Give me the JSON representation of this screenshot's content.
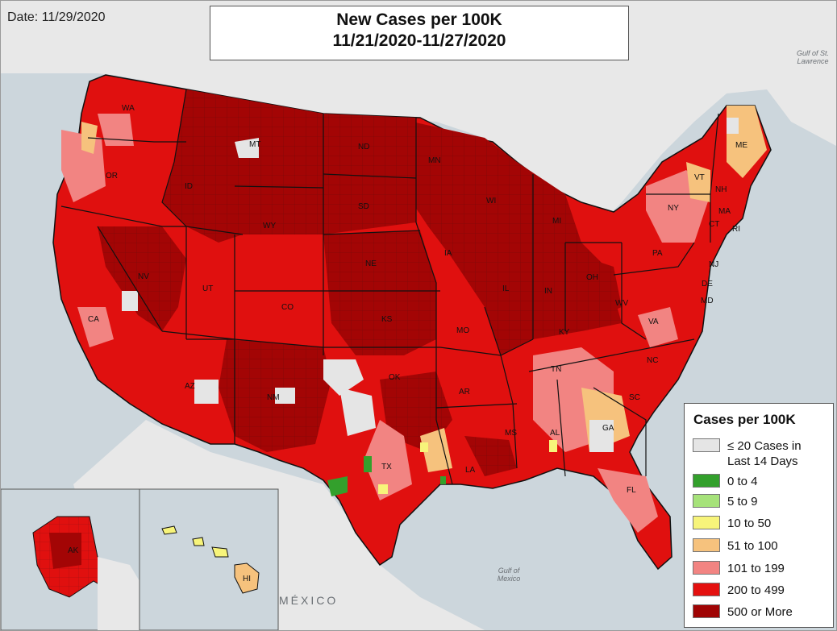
{
  "date_label": "Date: 11/29/2020",
  "title": {
    "line1": "New Cases per 100K",
    "line2": "11/21/2020-11/27/2020"
  },
  "legend": {
    "title": "Cases per 100K",
    "items": [
      {
        "label": "≤ 20 Cases in\nLast 14 Days",
        "color": "#e5e5e5"
      },
      {
        "label": "0 to 4",
        "color": "#33a02c"
      },
      {
        "label": "5 to 9",
        "color": "#a6e27a"
      },
      {
        "label": "10 to 50",
        "color": "#f7f47a"
      },
      {
        "label": "51 to 100",
        "color": "#f6c27d"
      },
      {
        "label": "101 to 199",
        "color": "#f28482"
      },
      {
        "label": "200 to 499",
        "color": "#e4100f"
      },
      {
        "label": "500 or More",
        "color": "#a00404"
      }
    ]
  },
  "geo_labels": {
    "gulf_of_st_lawrence": "Gulf of St. Lawrence",
    "gulf_of_mexico": "Gulf of Mexico",
    "mexico": "MÉXICO"
  },
  "state_labels": [
    {
      "abbr": "WA",
      "color_class": "dark"
    },
    {
      "abbr": "OR"
    },
    {
      "abbr": "CA"
    },
    {
      "abbr": "NV"
    },
    {
      "abbr": "ID"
    },
    {
      "abbr": "MT"
    },
    {
      "abbr": "WY"
    },
    {
      "abbr": "UT"
    },
    {
      "abbr": "AZ"
    },
    {
      "abbr": "CO"
    },
    {
      "abbr": "NM"
    },
    {
      "abbr": "ND"
    },
    {
      "abbr": "SD"
    },
    {
      "abbr": "NE"
    },
    {
      "abbr": "KS"
    },
    {
      "abbr": "OK"
    },
    {
      "abbr": "TX"
    },
    {
      "abbr": "MN"
    },
    {
      "abbr": "IA"
    },
    {
      "abbr": "MO"
    },
    {
      "abbr": "AR"
    },
    {
      "abbr": "LA"
    },
    {
      "abbr": "WI"
    },
    {
      "abbr": "IL"
    },
    {
      "abbr": "MI"
    },
    {
      "abbr": "IN"
    },
    {
      "abbr": "OH"
    },
    {
      "abbr": "KY"
    },
    {
      "abbr": "TN"
    },
    {
      "abbr": "MS"
    },
    {
      "abbr": "AL"
    },
    {
      "abbr": "GA"
    },
    {
      "abbr": "FL"
    },
    {
      "abbr": "SC"
    },
    {
      "abbr": "NC"
    },
    {
      "abbr": "VA"
    },
    {
      "abbr": "WV"
    },
    {
      "abbr": "PA"
    },
    {
      "abbr": "NY"
    },
    {
      "abbr": "VT"
    },
    {
      "abbr": "NH"
    },
    {
      "abbr": "ME"
    },
    {
      "abbr": "MA"
    },
    {
      "abbr": "CT"
    },
    {
      "abbr": "RI"
    },
    {
      "abbr": "NJ"
    },
    {
      "abbr": "DE"
    },
    {
      "abbr": "MD"
    },
    {
      "abbr": "AK"
    },
    {
      "abbr": "HI"
    }
  ],
  "colors": {
    "water": "#ccd6dc",
    "land_outside": "#eaeaea",
    "state_border": "#111111",
    "county_border": "#6b1010"
  }
}
